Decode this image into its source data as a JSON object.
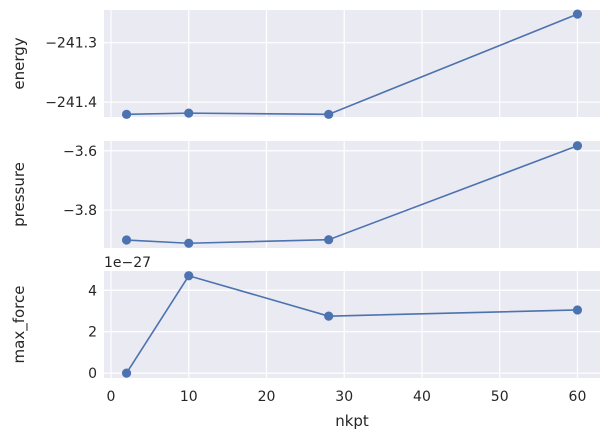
{
  "chart_data": [
    {
      "type": "line",
      "x": [
        2,
        10,
        28,
        60
      ],
      "values": [
        -241.4205,
        -241.4185,
        -241.4205,
        -241.252
      ],
      "ylabel": "energy",
      "yticks": [
        -241.4,
        -241.3
      ],
      "ytick_labels": [
        "−241.4",
        "−241.3"
      ],
      "ylim": [
        -241.425,
        -241.245
      ],
      "grid": true,
      "color": "#4c72b0"
    },
    {
      "type": "line",
      "x": [
        2,
        10,
        28,
        60
      ],
      "values": [
        -3.901,
        -3.912,
        -3.9,
        -3.583
      ],
      "ylabel": "pressure",
      "yticks": [
        -3.8,
        -3.6
      ],
      "ytick_labels": [
        "−3.8",
        "−3.6"
      ],
      "ylim": [
        -3.928,
        -3.567
      ],
      "grid": true,
      "color": "#4c72b0"
    },
    {
      "type": "line",
      "x": [
        2,
        10,
        28,
        60
      ],
      "values": [
        0,
        4.7,
        2.75,
        3.05
      ],
      "ylabel": "max_force",
      "offset_text": "1e−27",
      "yticks": [
        0,
        2,
        4
      ],
      "ytick_labels": [
        "0",
        "2",
        "4"
      ],
      "ylim": [
        -0.235,
        4.93
      ],
      "xlabel": "nkpt",
      "xticks": [
        0,
        10,
        20,
        30,
        40,
        50,
        60
      ],
      "xtick_labels": [
        "0",
        "10",
        "20",
        "30",
        "40",
        "50",
        "60"
      ],
      "grid": true,
      "color": "#4c72b0"
    }
  ],
  "shared_x": {
    "xlim": [
      -0.9,
      62.9
    ]
  }
}
